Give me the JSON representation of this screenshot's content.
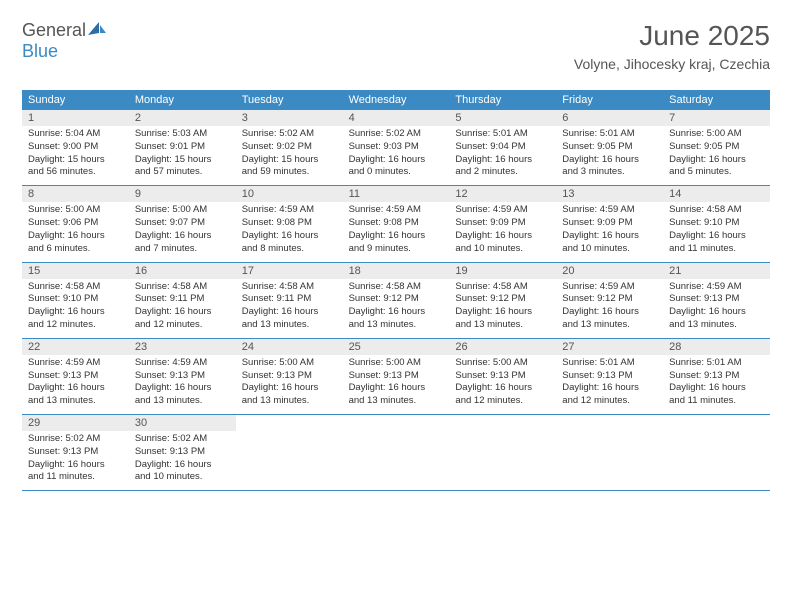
{
  "logo": {
    "text_general": "General",
    "text_blue": "Blue"
  },
  "title": "June 2025",
  "location": "Volyne, Jihocesky kraj, Czechia",
  "colors": {
    "header_bg": "#3b8ac4",
    "daynum_bg": "#ececec",
    "text": "#333333",
    "title_text": "#555555"
  },
  "weekdays": [
    "Sunday",
    "Monday",
    "Tuesday",
    "Wednesday",
    "Thursday",
    "Friday",
    "Saturday"
  ],
  "weeks": [
    [
      {
        "n": "1",
        "sr": "5:04 AM",
        "ss": "9:00 PM",
        "dl": "15 hours and 56 minutes."
      },
      {
        "n": "2",
        "sr": "5:03 AM",
        "ss": "9:01 PM",
        "dl": "15 hours and 57 minutes."
      },
      {
        "n": "3",
        "sr": "5:02 AM",
        "ss": "9:02 PM",
        "dl": "15 hours and 59 minutes."
      },
      {
        "n": "4",
        "sr": "5:02 AM",
        "ss": "9:03 PM",
        "dl": "16 hours and 0 minutes."
      },
      {
        "n": "5",
        "sr": "5:01 AM",
        "ss": "9:04 PM",
        "dl": "16 hours and 2 minutes."
      },
      {
        "n": "6",
        "sr": "5:01 AM",
        "ss": "9:05 PM",
        "dl": "16 hours and 3 minutes."
      },
      {
        "n": "7",
        "sr": "5:00 AM",
        "ss": "9:05 PM",
        "dl": "16 hours and 5 minutes."
      }
    ],
    [
      {
        "n": "8",
        "sr": "5:00 AM",
        "ss": "9:06 PM",
        "dl": "16 hours and 6 minutes."
      },
      {
        "n": "9",
        "sr": "5:00 AM",
        "ss": "9:07 PM",
        "dl": "16 hours and 7 minutes."
      },
      {
        "n": "10",
        "sr": "4:59 AM",
        "ss": "9:08 PM",
        "dl": "16 hours and 8 minutes."
      },
      {
        "n": "11",
        "sr": "4:59 AM",
        "ss": "9:08 PM",
        "dl": "16 hours and 9 minutes."
      },
      {
        "n": "12",
        "sr": "4:59 AM",
        "ss": "9:09 PM",
        "dl": "16 hours and 10 minutes."
      },
      {
        "n": "13",
        "sr": "4:59 AM",
        "ss": "9:09 PM",
        "dl": "16 hours and 10 minutes."
      },
      {
        "n": "14",
        "sr": "4:58 AM",
        "ss": "9:10 PM",
        "dl": "16 hours and 11 minutes."
      }
    ],
    [
      {
        "n": "15",
        "sr": "4:58 AM",
        "ss": "9:10 PM",
        "dl": "16 hours and 12 minutes."
      },
      {
        "n": "16",
        "sr": "4:58 AM",
        "ss": "9:11 PM",
        "dl": "16 hours and 12 minutes."
      },
      {
        "n": "17",
        "sr": "4:58 AM",
        "ss": "9:11 PM",
        "dl": "16 hours and 13 minutes."
      },
      {
        "n": "18",
        "sr": "4:58 AM",
        "ss": "9:12 PM",
        "dl": "16 hours and 13 minutes."
      },
      {
        "n": "19",
        "sr": "4:58 AM",
        "ss": "9:12 PM",
        "dl": "16 hours and 13 minutes."
      },
      {
        "n": "20",
        "sr": "4:59 AM",
        "ss": "9:12 PM",
        "dl": "16 hours and 13 minutes."
      },
      {
        "n": "21",
        "sr": "4:59 AM",
        "ss": "9:13 PM",
        "dl": "16 hours and 13 minutes."
      }
    ],
    [
      {
        "n": "22",
        "sr": "4:59 AM",
        "ss": "9:13 PM",
        "dl": "16 hours and 13 minutes."
      },
      {
        "n": "23",
        "sr": "4:59 AM",
        "ss": "9:13 PM",
        "dl": "16 hours and 13 minutes."
      },
      {
        "n": "24",
        "sr": "5:00 AM",
        "ss": "9:13 PM",
        "dl": "16 hours and 13 minutes."
      },
      {
        "n": "25",
        "sr": "5:00 AM",
        "ss": "9:13 PM",
        "dl": "16 hours and 13 minutes."
      },
      {
        "n": "26",
        "sr": "5:00 AM",
        "ss": "9:13 PM",
        "dl": "16 hours and 12 minutes."
      },
      {
        "n": "27",
        "sr": "5:01 AM",
        "ss": "9:13 PM",
        "dl": "16 hours and 12 minutes."
      },
      {
        "n": "28",
        "sr": "5:01 AM",
        "ss": "9:13 PM",
        "dl": "16 hours and 11 minutes."
      }
    ],
    [
      {
        "n": "29",
        "sr": "5:02 AM",
        "ss": "9:13 PM",
        "dl": "16 hours and 11 minutes."
      },
      {
        "n": "30",
        "sr": "5:02 AM",
        "ss": "9:13 PM",
        "dl": "16 hours and 10 minutes."
      },
      null,
      null,
      null,
      null,
      null
    ]
  ],
  "labels": {
    "sunrise": "Sunrise:",
    "sunset": "Sunset:",
    "daylight": "Daylight:"
  }
}
